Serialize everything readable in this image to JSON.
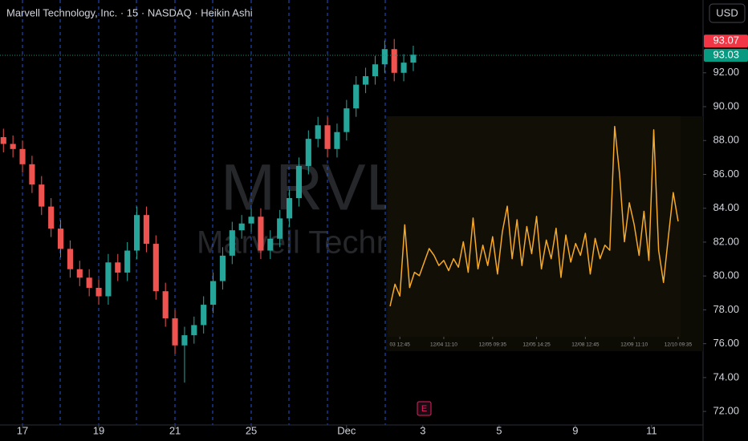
{
  "header": {
    "title": "Marvell Technology, Inc. · 15 · NASDAQ · Heikin Ashi",
    "currency": "USD"
  },
  "watermark": {
    "symbol": "MRVL",
    "name": "Marvell Technology"
  },
  "event_marker": "E",
  "chart_data": [
    {
      "type": "candlestick",
      "up_color": "#26a69a",
      "down_color": "#ef5350",
      "x": [
        -0.5,
        -0.25,
        0,
        0.25,
        0.5,
        0.75,
        1,
        1.25,
        1.5,
        1.75,
        2,
        2.25,
        2.5,
        2.75,
        3,
        3.25,
        3.5,
        3.75,
        4,
        4.25,
        4.5,
        4.75,
        5,
        5.25,
        5.5,
        5.75,
        6,
        6.25,
        6.5,
        6.75,
        7,
        7.25,
        7.5,
        7.75,
        8,
        8.25,
        8.5,
        8.75,
        9,
        9.25,
        9.5,
        9.75,
        10,
        10.25
      ],
      "open": [
        88.2,
        87.8,
        87.5,
        86.6,
        85.4,
        84.1,
        82.8,
        81.6,
        80.4,
        79.9,
        79.3,
        78.8,
        80.8,
        80.2,
        81.5,
        83.6,
        81.9,
        79.1,
        77.5,
        75.9,
        76.5,
        77.1,
        78.3,
        79.7,
        81.2,
        82.7,
        83.1,
        83.5,
        81.5,
        82.2,
        83.4,
        84.6,
        86.5,
        88.1,
        88.9,
        87.5,
        88.5,
        89.9,
        91.3,
        91.8,
        92.5,
        93.4,
        92.0,
        92.6
      ],
      "high": [
        88.7,
        88.3,
        88.0,
        87.1,
        85.9,
        84.6,
        83.3,
        82.1,
        80.9,
        80.4,
        79.8,
        81.3,
        81.3,
        82.0,
        84.1,
        84.1,
        82.4,
        79.6,
        78.0,
        77.0,
        77.6,
        78.8,
        80.2,
        81.7,
        83.2,
        83.6,
        84.0,
        84.0,
        82.7,
        83.9,
        85.1,
        87.0,
        88.6,
        89.4,
        89.4,
        89.0,
        90.4,
        91.8,
        92.3,
        93.0,
        93.9,
        94.0,
        93.1,
        93.6
      ],
      "low": [
        87.3,
        87.0,
        86.1,
        84.9,
        83.6,
        82.3,
        81.1,
        79.9,
        79.4,
        78.8,
        78.3,
        78.3,
        79.7,
        79.7,
        81.0,
        81.4,
        78.6,
        77.0,
        75.4,
        73.7,
        76.0,
        76.6,
        77.8,
        79.2,
        80.7,
        82.2,
        82.6,
        81.0,
        81.0,
        81.7,
        82.9,
        84.1,
        86.0,
        87.6,
        87.0,
        87.0,
        88.0,
        89.4,
        90.8,
        91.3,
        92.0,
        91.5,
        91.5,
        92.1
      ],
      "close": [
        87.8,
        87.5,
        86.6,
        85.4,
        84.1,
        82.8,
        81.6,
        80.4,
        79.9,
        79.3,
        78.8,
        80.8,
        80.2,
        81.5,
        83.6,
        81.9,
        79.1,
        77.5,
        75.9,
        76.5,
        77.1,
        78.3,
        79.7,
        81.2,
        82.7,
        83.1,
        83.5,
        81.5,
        82.2,
        83.4,
        84.6,
        86.5,
        88.1,
        88.9,
        87.5,
        88.5,
        89.9,
        91.3,
        91.8,
        92.5,
        93.4,
        92.0,
        92.6,
        93.07
      ],
      "xlim": [
        -0.59,
        17.85
      ],
      "xticks": [
        {
          "value": 0,
          "label": "17"
        },
        {
          "value": 2,
          "label": "19"
        },
        {
          "value": 4,
          "label": "21"
        },
        {
          "value": 6,
          "label": "25"
        },
        {
          "value": 8.5,
          "label": "Dec"
        },
        {
          "value": 10.5,
          "label": "3"
        },
        {
          "value": 12.5,
          "label": "5"
        },
        {
          "value": 14.5,
          "label": "9"
        },
        {
          "value": 16.5,
          "label": "11"
        }
      ],
      "ylim": [
        71.2,
        96.3
      ],
      "yticks": [
        {
          "value": 72,
          "label": "72.00"
        },
        {
          "value": 74,
          "label": "74.00"
        },
        {
          "value": 76,
          "label": "76.00"
        },
        {
          "value": 78,
          "label": "78.00"
        },
        {
          "value": 80,
          "label": "80.00"
        },
        {
          "value": 82,
          "label": "82.00"
        },
        {
          "value": 84,
          "label": "84.00"
        },
        {
          "value": 86,
          "label": "86.00"
        },
        {
          "value": 88,
          "label": "88.00"
        },
        {
          "value": 90,
          "label": "90.00"
        },
        {
          "value": 92,
          "label": "92.00"
        }
      ],
      "grid": false,
      "price_labels": [
        {
          "value": 93.07,
          "color": "#f23645"
        },
        {
          "value": 93.03,
          "color": "#089981"
        }
      ]
    },
    {
      "type": "line",
      "color": "#f7a928",
      "categories": [
        null,
        null,
        "03 12:45",
        null,
        null,
        null,
        null,
        null,
        null,
        null,
        null,
        "12/04 11:10",
        null,
        null,
        null,
        null,
        null,
        null,
        null,
        null,
        null,
        "12/05 09:35",
        null,
        null,
        null,
        null,
        null,
        null,
        null,
        null,
        "12/05 14:25",
        null,
        null,
        null,
        null,
        null,
        null,
        null,
        null,
        null,
        "12/08 12:45",
        null,
        null,
        null,
        null,
        null,
        null,
        null,
        null,
        null,
        "12/09 11:10",
        null,
        null,
        null,
        null,
        null,
        null,
        null,
        null,
        "12/10 09:35"
      ],
      "values": [
        78.2,
        79.5,
        78.8,
        83.0,
        79.3,
        80.2,
        80.0,
        80.8,
        81.6,
        81.2,
        80.6,
        80.9,
        80.3,
        81.0,
        80.5,
        82.0,
        80.2,
        83.4,
        80.4,
        81.8,
        80.6,
        82.3,
        80.1,
        82.6,
        84.1,
        81.0,
        83.3,
        80.6,
        82.9,
        81.3,
        83.5,
        80.4,
        82.1,
        81.0,
        82.8,
        79.9,
        82.4,
        80.8,
        81.9,
        81.2,
        82.5,
        80.1,
        82.2,
        81.0,
        81.8,
        81.5,
        88.8,
        86.0,
        82.0,
        84.3,
        83.0,
        81.2,
        83.8,
        80.9,
        88.6,
        81.5,
        79.6,
        82.3,
        84.9,
        83.2
      ],
      "ylim": [
        76.4,
        89.4
      ]
    }
  ]
}
